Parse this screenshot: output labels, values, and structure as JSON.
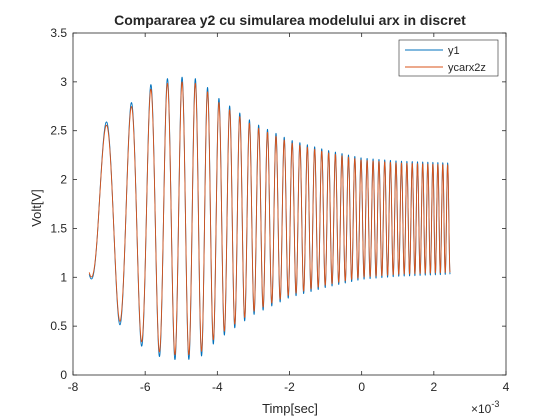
{
  "chart_data": {
    "type": "line",
    "title": "Compararea y2 cu simularea modelului arx in discret",
    "xlabel": "Timp[sec]",
    "ylabel": "Volt[V]",
    "x_exponent": "×10",
    "x_exponent_power": "-3",
    "xlim": [
      -8,
      4
    ],
    "ylim": [
      0,
      3.5
    ],
    "xticks": [
      -8,
      -6,
      -4,
      -2,
      0,
      2,
      4
    ],
    "xtick_labels": [
      "-8",
      "-6",
      "-4",
      "-2",
      "0",
      "2",
      "4"
    ],
    "yticks": [
      0,
      0.5,
      1,
      1.5,
      2,
      2.5,
      3,
      3.5
    ],
    "ytick_labels": [
      "0",
      "0.5",
      "1",
      "1.5",
      "2",
      "2.5",
      "3",
      "3.5"
    ],
    "grid": false,
    "legend_position": "top-right",
    "x_range": [
      -7.55,
      2.45
    ],
    "series": [
      {
        "name": "y1",
        "color": "#0072BD"
      },
      {
        "name": "ycarx2z",
        "color": "#D95319"
      }
    ],
    "signal": {
      "description": "chirp oscillation around 1.6 V with growing frequency",
      "offset": 1.6,
      "envelope": [
        [
          -7.55,
          0.55
        ],
        [
          -7.3,
          0.9
        ],
        [
          -6.5,
          1.1
        ],
        [
          -6.0,
          1.3
        ],
        [
          -5.5,
          1.38
        ],
        [
          -5.0,
          1.4
        ],
        [
          -4.5,
          1.38
        ],
        [
          -4.0,
          1.2
        ],
        [
          -3.0,
          0.95
        ],
        [
          -2.0,
          0.78
        ],
        [
          -1.0,
          0.68
        ],
        [
          0.0,
          0.6
        ],
        [
          1.0,
          0.57
        ],
        [
          2.45,
          0.55
        ]
      ],
      "freq_start": 0.9,
      "freq_end": 7.5
    }
  }
}
